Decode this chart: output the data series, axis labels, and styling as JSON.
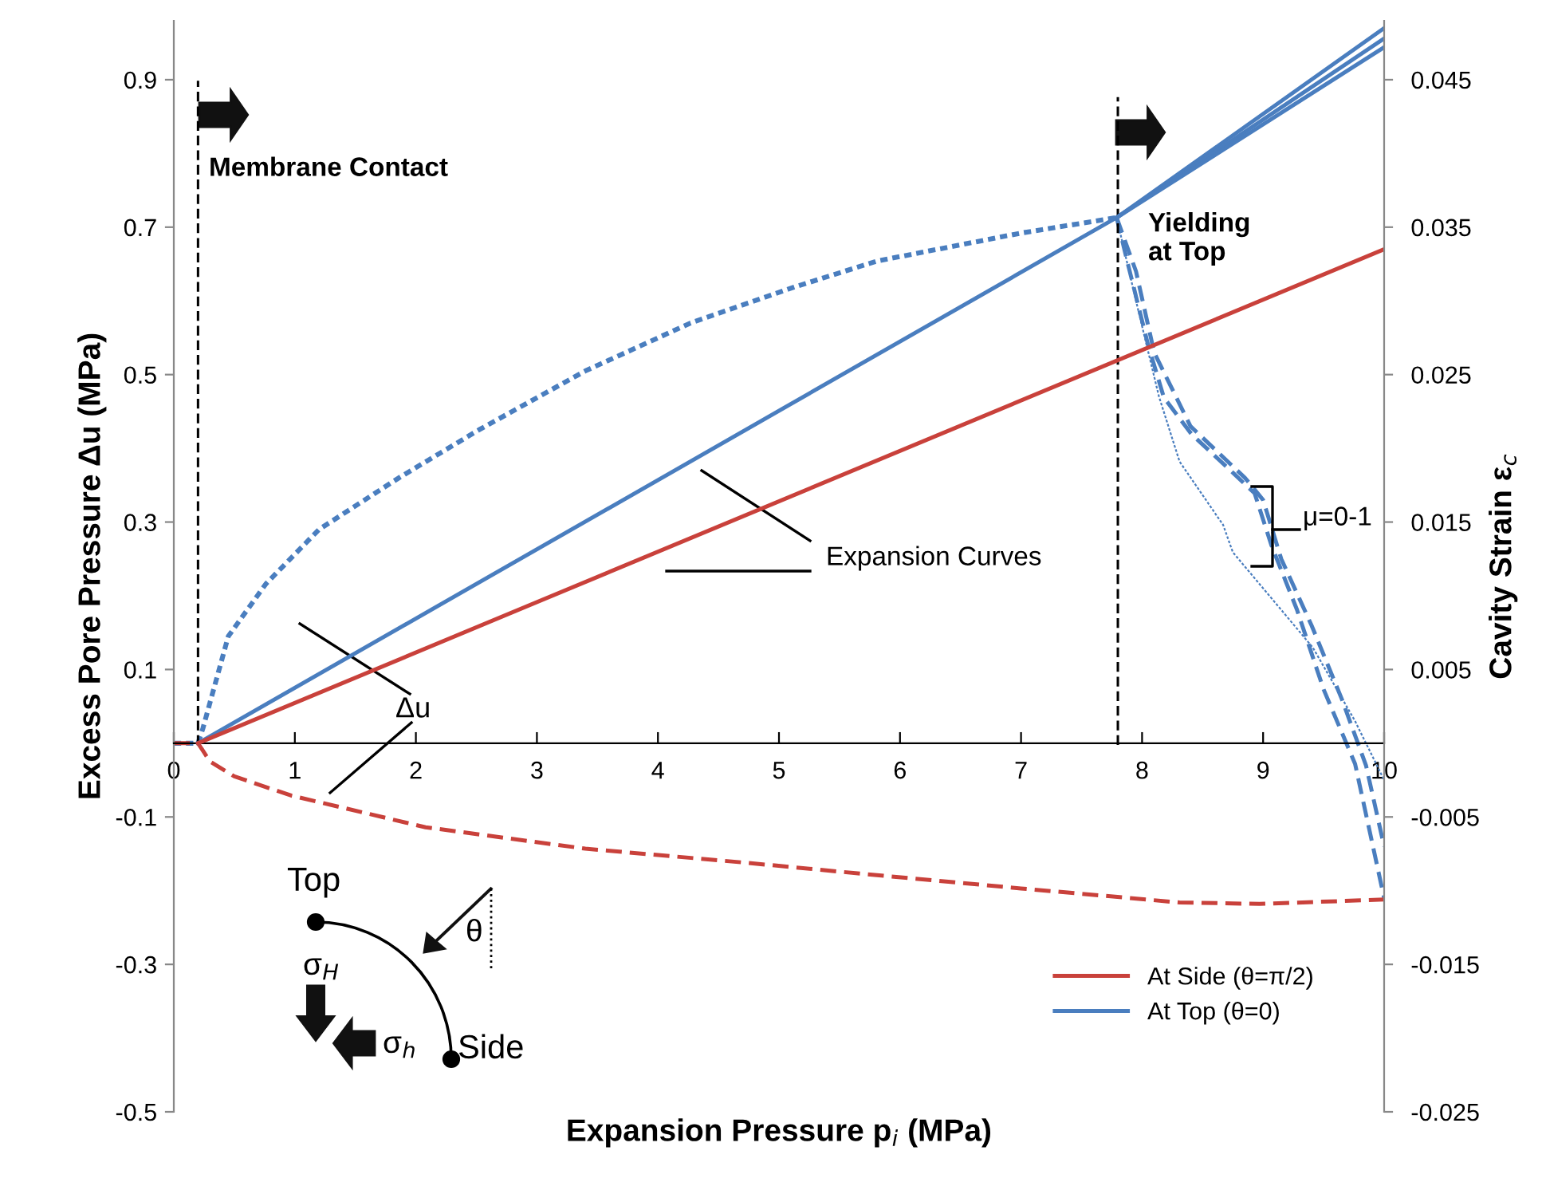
{
  "chart_data": {
    "type": "line",
    "xlabel": "Expansion Pressure p$_{i}$ (MPa)",
    "ylabel": "Excess Pore Pressure Δu (MPa)",
    "y2label": "Cavity Strain ε$_{c}$",
    "xlim": [
      0,
      10
    ],
    "xticks": [
      0,
      1,
      2,
      3,
      4,
      5,
      6,
      7,
      8,
      9,
      10
    ],
    "ylim": [
      -0.5,
      0.98
    ],
    "yticks": [
      -0.5,
      -0.3,
      -0.1,
      0.1,
      0.3,
      0.5,
      0.7,
      0.9
    ],
    "y2lim": [
      -0.025,
      0.049
    ],
    "y2ticks": [
      -0.025,
      -0.015,
      -0.005,
      0.005,
      0.015,
      0.025,
      0.035,
      0.045
    ],
    "grid": false,
    "legend": "bottom right",
    "marker": "none",
    "series": [
      {
        "name": "At Top (θ=0)",
        "color": "#4a7ebf",
        "axis": "y",
        "line_style": "dotted",
        "x": [
          0,
          0.2,
          0.24,
          0.45,
          0.76,
          1.2,
          1.86,
          2.52,
          3.4,
          4.27,
          5.15,
          5.81,
          7.0,
          7.79
        ],
        "values": [
          0,
          0,
          0.02,
          0.145,
          0.216,
          0.29,
          0.36,
          0.425,
          0.505,
          0.57,
          0.62,
          0.654,
          0.692,
          0.713
        ]
      },
      {
        "color": "#4a7ebf",
        "axis": "y",
        "line_style": "dashed",
        "x": [
          7.79,
          7.88,
          8.05,
          8.18,
          8.41,
          8.75,
          8.93,
          9.07,
          9.28,
          9.5,
          9.76,
          10
        ],
        "values": [
          0.713,
          0.652,
          0.54,
          0.469,
          0.419,
          0.367,
          0.339,
          0.268,
          0.181,
          0.073,
          -0.028,
          -0.21
        ]
      },
      {
        "color": "#4a7ebf",
        "axis": "y",
        "line_style": "dashed",
        "x": [
          7.79,
          7.95,
          8.1,
          8.4,
          8.85,
          9.0,
          9.15,
          9.4,
          9.65,
          9.85,
          10
        ],
        "values": [
          0.713,
          0.64,
          0.53,
          0.43,
          0.36,
          0.33,
          0.25,
          0.16,
          0.06,
          -0.03,
          -0.14
        ]
      },
      {
        "color": "#4a7ebf",
        "axis": "y",
        "line_style": "dotted",
        "x": [
          7.79,
          7.95,
          8.14,
          8.31,
          8.67,
          8.75,
          8.97,
          9.41,
          9.76,
          10
        ],
        "values": [
          0.713,
          0.6,
          0.47,
          0.382,
          0.296,
          0.259,
          0.216,
          0.13,
          0.03,
          -0.05
        ]
      },
      {
        "name": "At Side (θ=π/2)",
        "color": "#c9413b",
        "axis": "y",
        "line_style": "dashed",
        "x": [
          0,
          0.2,
          0.3,
          0.5,
          0.97,
          2.08,
          3.4,
          4.72,
          5.81,
          7.0,
          8.31,
          8.97,
          10
        ],
        "values": [
          0,
          0,
          -0.025,
          -0.045,
          -0.071,
          -0.114,
          -0.143,
          -0.162,
          -0.179,
          -0.197,
          -0.216,
          -0.218,
          -0.212
        ]
      },
      {
        "color": "#4a7ebf",
        "axis": "y2",
        "line_style": "solid",
        "x": [
          0.2,
          7.8,
          10
        ],
        "values": [
          0,
          0.0357,
          0.0485
        ]
      },
      {
        "color": "#4a7ebf",
        "axis": "y2",
        "line_style": "solid",
        "x": [
          7.8,
          10
        ],
        "values": [
          0.0357,
          0.0478
        ]
      },
      {
        "color": "#4a7ebf",
        "axis": "y2",
        "line_style": "solid",
        "x": [
          7.8,
          10
        ],
        "values": [
          0.0357,
          0.0472
        ]
      },
      {
        "color": "#c9413b",
        "axis": "y2",
        "line_style": "solid",
        "x": [
          0.2,
          10
        ],
        "values": [
          0,
          0.0335
        ]
      }
    ],
    "ref_lines": [
      {
        "axis": "x",
        "value": 0.2,
        "label": "Membrane Contact",
        "color": "#000000",
        "line_style": "dashed"
      },
      {
        "axis": "x",
        "value": 7.8,
        "label": "Yielding\nat Top",
        "color": "#000000",
        "line_style": "dashed"
      }
    ],
    "annotations": [
      "Expansion Curves",
      "Δu",
      "μ=0-1",
      "Top",
      "Side",
      "σ$_{H}$",
      "σ$_{h}$",
      "θ"
    ]
  }
}
